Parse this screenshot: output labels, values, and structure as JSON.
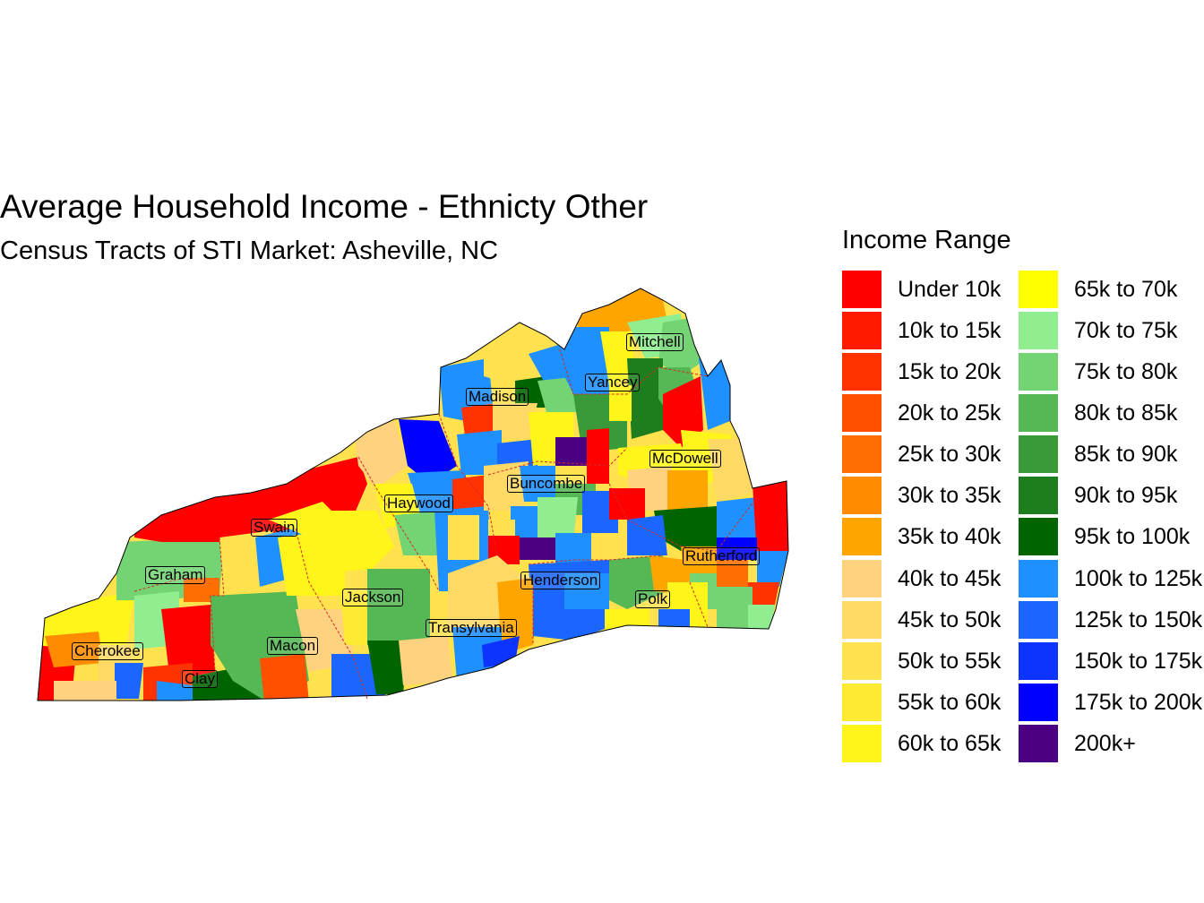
{
  "title": "Average Household Income - Ethnicty Other",
  "subtitle": "Census Tracts of STI Market: Asheville, NC",
  "legend": {
    "title": "Income Range",
    "items": [
      {
        "label": "Under 10k",
        "color": "#FF0000"
      },
      {
        "label": "10k to 15k",
        "color": "#FF1A00"
      },
      {
        "label": "15k to 20k",
        "color": "#FF3300"
      },
      {
        "label": "20k to 25k",
        "color": "#FF5000"
      },
      {
        "label": "25k to 30k",
        "color": "#FF6E00"
      },
      {
        "label": "30k to 35k",
        "color": "#FF8C00"
      },
      {
        "label": "35k to 40k",
        "color": "#FFA500"
      },
      {
        "label": "40k to 45k",
        "color": "#FFD27F"
      },
      {
        "label": "45k to 50k",
        "color": "#FFD966"
      },
      {
        "label": "50k to 55k",
        "color": "#FFE24D"
      },
      {
        "label": "55k to 60k",
        "color": "#FFEA33"
      },
      {
        "label": "60k to 65k",
        "color": "#FFF51A"
      },
      {
        "label": "65k to 70k",
        "color": "#FFFF00"
      },
      {
        "label": "70k to 75k",
        "color": "#90EE90"
      },
      {
        "label": "75k to 80k",
        "color": "#74D474"
      },
      {
        "label": "80k to 85k",
        "color": "#55B855"
      },
      {
        "label": "85k to 90k",
        "color": "#3A9A3A"
      },
      {
        "label": "90k to 95k",
        "color": "#1E7E1E"
      },
      {
        "label": "95k to 100k",
        "color": "#006400"
      },
      {
        "label": "100k to 125k",
        "color": "#1E90FF"
      },
      {
        "label": "125k to 150k",
        "color": "#1A66FF"
      },
      {
        "label": "150k to 175k",
        "color": "#0D33FF"
      },
      {
        "label": "175k to 200k",
        "color": "#0000FF"
      },
      {
        "label": "200k+",
        "color": "#4B0082"
      }
    ]
  },
  "counties": [
    {
      "id": "mitchell",
      "name": "Mitchell"
    },
    {
      "id": "yancey",
      "name": "Yancey"
    },
    {
      "id": "madison",
      "name": "Madison"
    },
    {
      "id": "mcdowell",
      "name": "McDowell"
    },
    {
      "id": "buncombe",
      "name": "Buncombe"
    },
    {
      "id": "haywood",
      "name": "Haywood"
    },
    {
      "id": "swain",
      "name": "Swain"
    },
    {
      "id": "rutherford",
      "name": "Rutherford"
    },
    {
      "id": "graham",
      "name": "Graham"
    },
    {
      "id": "henderson",
      "name": "Henderson"
    },
    {
      "id": "jackson",
      "name": "Jackson"
    },
    {
      "id": "polk",
      "name": "Polk"
    },
    {
      "id": "transylvania",
      "name": "Transylvania"
    },
    {
      "id": "macon",
      "name": "Macon"
    },
    {
      "id": "cherokee",
      "name": "Cherokee"
    },
    {
      "id": "clay",
      "name": "Clay"
    }
  ]
}
